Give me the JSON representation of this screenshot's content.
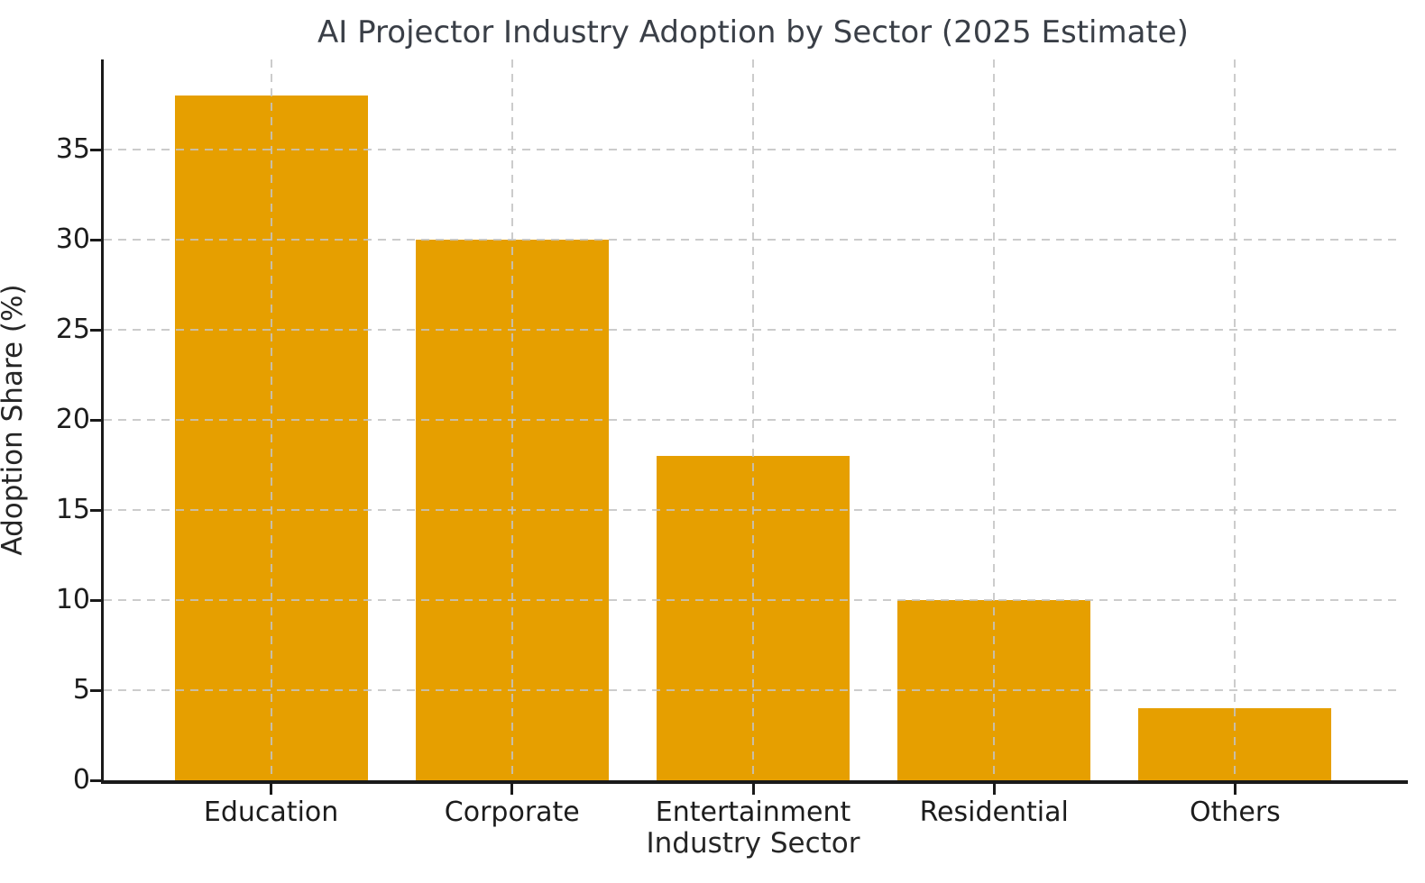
{
  "chart_data": {
    "type": "bar",
    "title": "AI Projector Industry Adoption by Sector (2025 Estimate)",
    "xlabel": "Industry Sector",
    "ylabel": "Adoption Share (%)",
    "categories": [
      "Education",
      "Corporate",
      "Entertainment",
      "Residential",
      "Others"
    ],
    "values": [
      38,
      30,
      18,
      10,
      4
    ],
    "yticks": [
      0,
      5,
      10,
      15,
      20,
      25,
      30,
      35
    ],
    "ylim": [
      0,
      40
    ],
    "bar_color": "#E69F00",
    "grid": "dashed",
    "grid_on": true,
    "grid_color": "#c3c3c3",
    "axis_color": "#1a1a1a",
    "tick_text_color": "#1c1c1c",
    "title_color": "#3a3f47",
    "legend": "none",
    "background_color": "#ffffff"
  }
}
